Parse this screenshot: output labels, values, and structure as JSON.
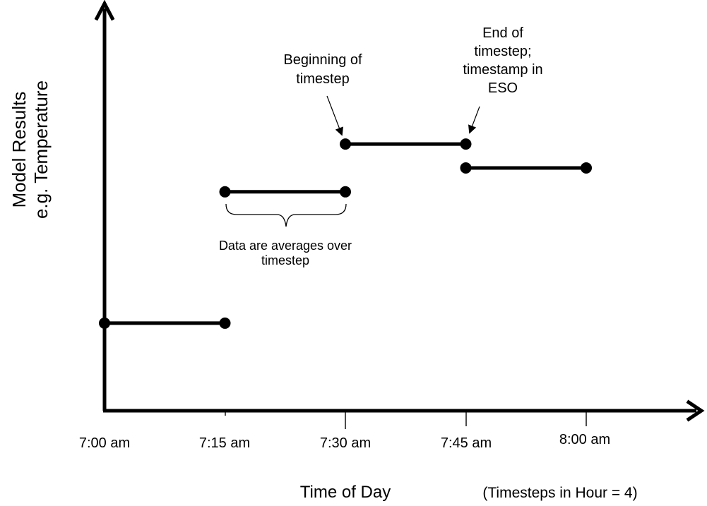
{
  "page": {
    "background": "#ffffff",
    "ink": "#000000"
  },
  "chart_data": {
    "type": "line",
    "subtype": "horizontal-step-segments-with-endpoint-dots",
    "title": "",
    "xlabel": "Time of Day",
    "xlabel_note": "(Timesteps in Hour = 4)",
    "ylabel": "Model Results\ne.g. Temperature",
    "x_ticks": [
      "7:00 am",
      "7:15 am",
      "7:30 am",
      "7:45 am",
      "8:00 am"
    ],
    "y_ticks": [],
    "grid": false,
    "axis_color": "#000000",
    "level_units": "fraction of visible y-axis height (no numeric y scale shown)",
    "segments": [
      {
        "start_label": "7:00 am",
        "end_label": "7:15 am",
        "start_min": 0,
        "end_min": 15,
        "level": 0.22
      },
      {
        "start_label": "7:15 am",
        "end_label": "7:30 am",
        "start_min": 15,
        "end_min": 30,
        "level": 0.55
      },
      {
        "start_label": "7:30 am",
        "end_label": "7:45 am",
        "start_min": 30,
        "end_min": 45,
        "level": 0.67
      },
      {
        "start_label": "7:45 am",
        "end_label": "8:00 am",
        "start_min": 45,
        "end_min": 60,
        "level": 0.61
      }
    ],
    "annotations": {
      "beginning": {
        "text": "Beginning of\ntimestep",
        "points_to": "left endpoint of 7:30–7:45 segment"
      },
      "end": {
        "text": "End of\ntimestep;\ntimestamp in\nESO",
        "points_to": "right endpoint of 7:30–7:45 segment"
      },
      "averages": {
        "text": "Data are averages over\ntimestep",
        "points_to": "7:15–7:30 segment via curly brace"
      }
    }
  }
}
